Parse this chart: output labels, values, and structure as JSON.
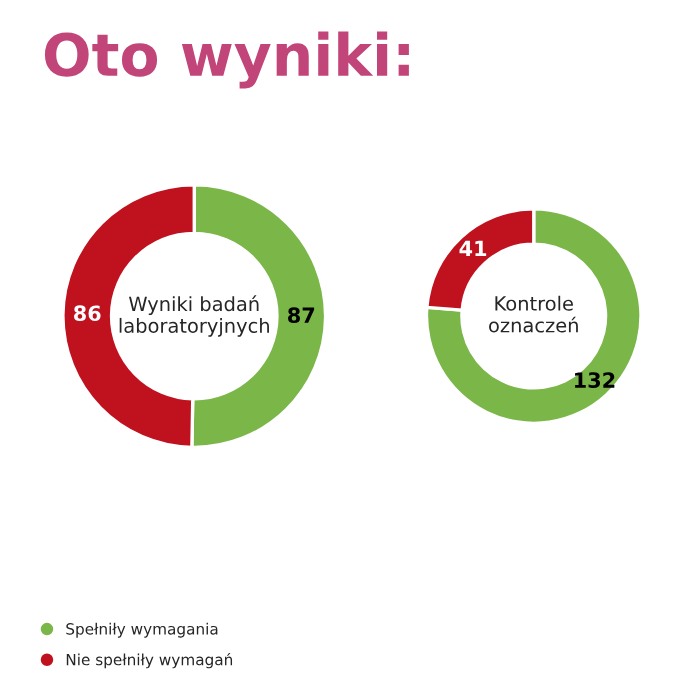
{
  "chart_data": [
    {
      "type": "donut",
      "title": "Oto wyniki:",
      "categories": [
        "Spełniły wymagania",
        "Nie spełniły wymagań"
      ],
      "values": [
        87,
        86
      ],
      "colors": [
        "#7ab648",
        "#c0111f"
      ],
      "data_labels": true,
      "annotations": [
        "Wyniki badań\nlaboratoryjnych"
      ],
      "legend": "bottom left"
    },
    {
      "type": "donut",
      "categories": [
        null,
        null
      ],
      "values": [
        132,
        41
      ],
      "colors": [
        "#7ab648",
        "#c0111f"
      ],
      "data_labels": true,
      "annotations": [
        "Kontrole\noznaczeń"
      ]
    }
  ]
}
